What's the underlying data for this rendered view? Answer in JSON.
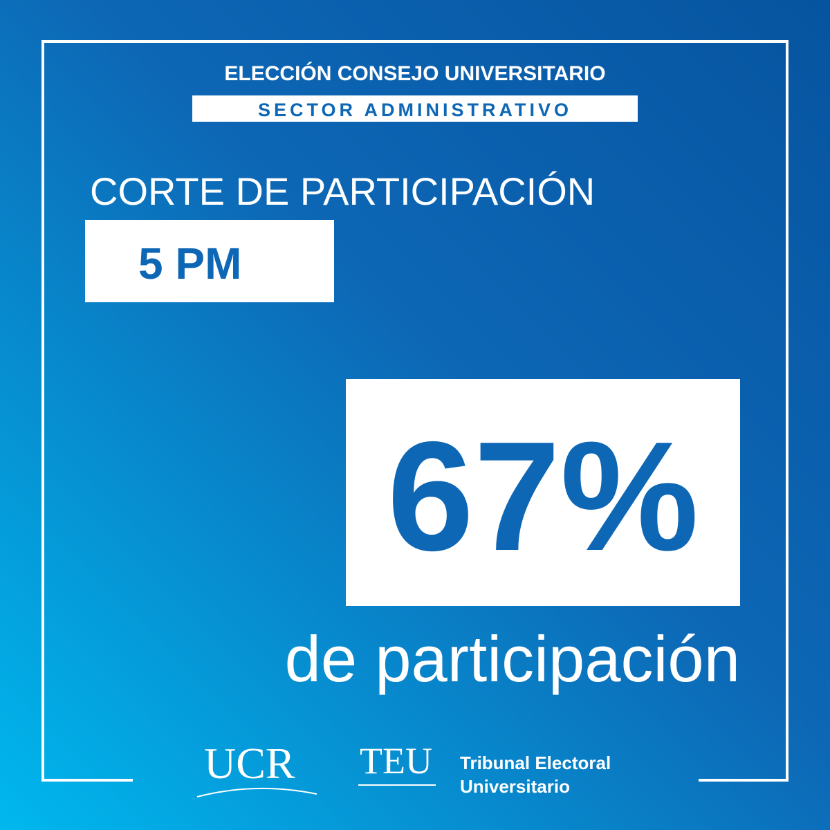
{
  "header": {
    "title": "ELECCIÓN CONSEJO UNIVERSITARIO",
    "subtitle": "SECTOR ADMINISTRATIVO"
  },
  "main": {
    "heading": "CORTE DE PARTICIPACIÓN",
    "time": "5 PM",
    "percentage": "67%",
    "caption": "de participación"
  },
  "footer": {
    "logo_1": "UCR",
    "logo_2": "TEU",
    "organization_line_1": "Tribunal Electoral",
    "organization_line_2": "Universitario"
  }
}
